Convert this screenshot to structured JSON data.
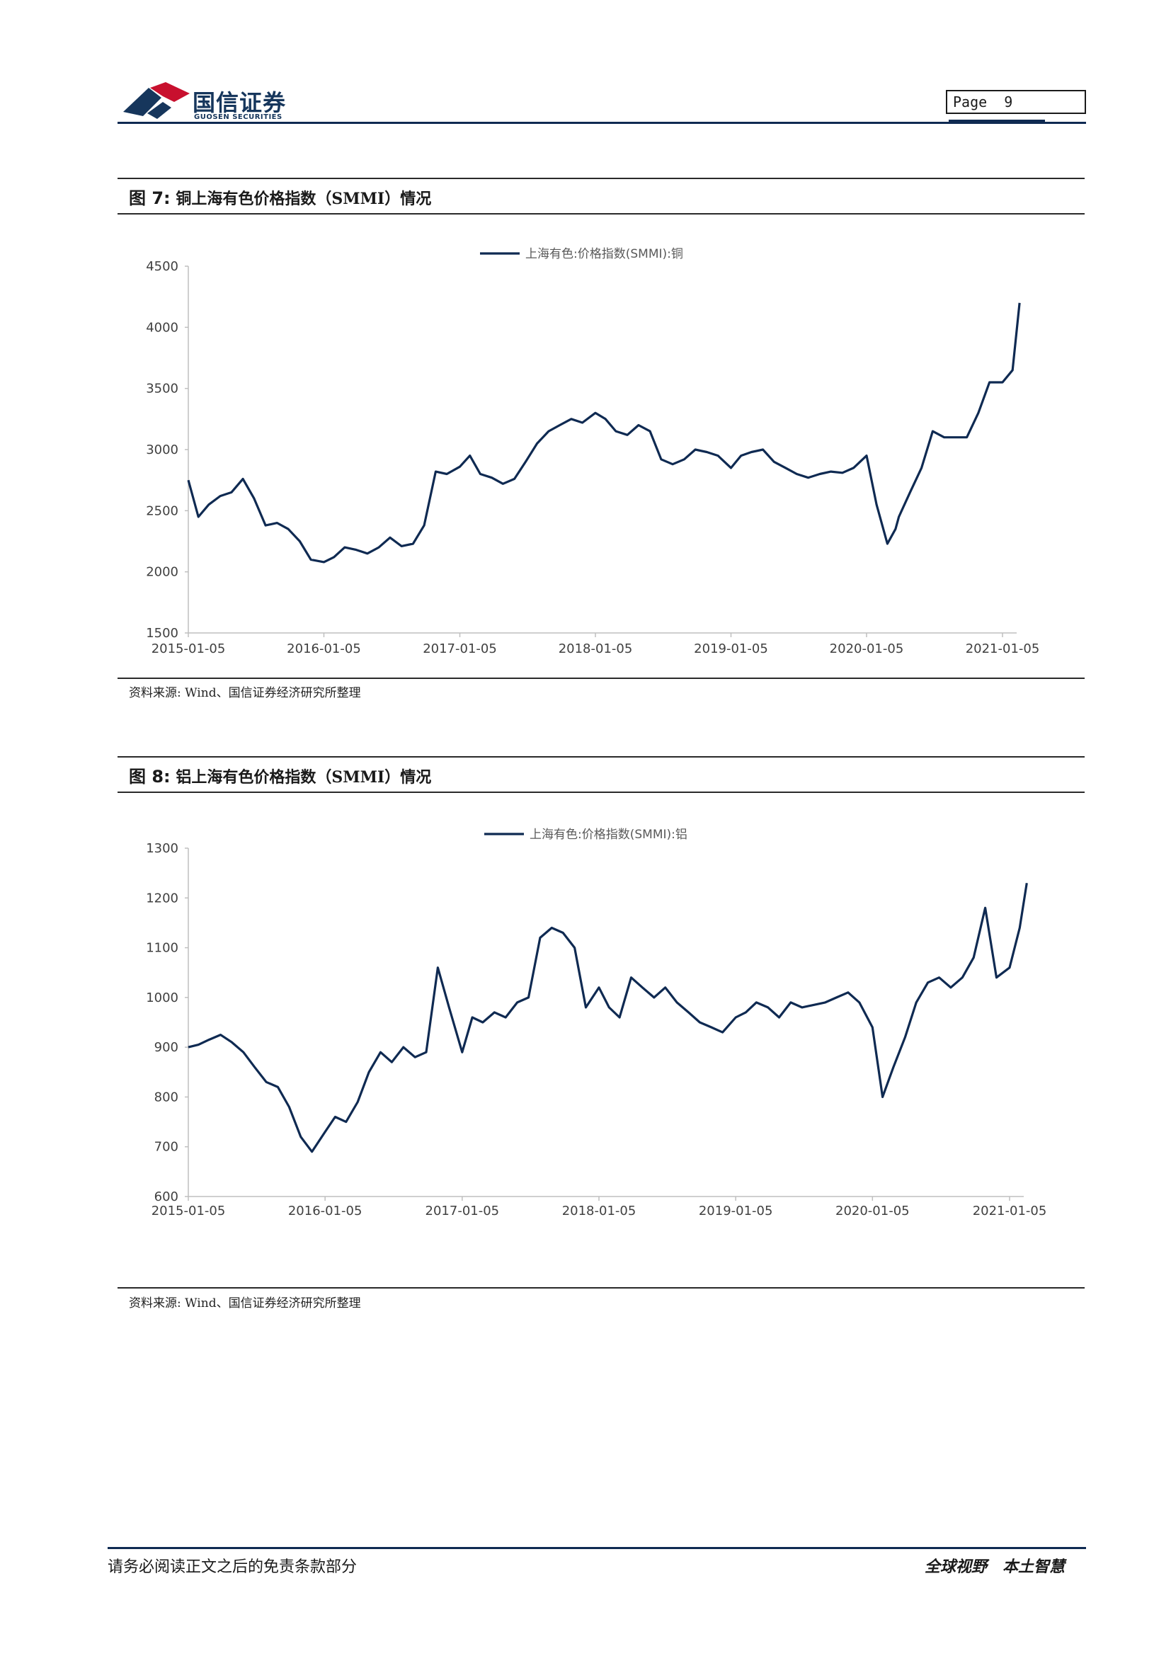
{
  "header": {
    "logo_cn": "国信证券",
    "logo_en": "GUOSEN SECURITIES",
    "page_label": "Page",
    "page_number": "9",
    "colors": {
      "brand_navy": "#16365c",
      "brand_red": "#c8102e"
    }
  },
  "figures": [
    {
      "label": "图 7:",
      "title": "铜上海有色价格指数（SMMI）情况",
      "source": "资料来源: Wind、国信证券经济研究所整理"
    },
    {
      "label": "图 8:",
      "title": "铝上海有色价格指数（SMMI）情况",
      "source": "资料来源: Wind、国信证券经济研究所整理"
    }
  ],
  "chart_data": [
    {
      "type": "line",
      "color": "#0f2a52",
      "series": [
        {
          "name": "上海有色:价格指数(SMMI):铜",
          "x": [
            "2015-01-05",
            "2015-02-01",
            "2015-03-01",
            "2015-04-01",
            "2015-05-01",
            "2015-06-01",
            "2015-07-01",
            "2015-08-01",
            "2015-09-01",
            "2015-10-01",
            "2015-11-01",
            "2015-12-01",
            "2016-01-05",
            "2016-02-01",
            "2016-03-01",
            "2016-04-01",
            "2016-05-01",
            "2016-06-01",
            "2016-07-01",
            "2016-08-01",
            "2016-09-01",
            "2016-10-01",
            "2016-11-01",
            "2016-12-01",
            "2017-01-05",
            "2017-02-01",
            "2017-03-01",
            "2017-04-01",
            "2017-05-01",
            "2017-06-01",
            "2017-07-01",
            "2017-08-01",
            "2017-09-01",
            "2017-10-01",
            "2017-11-01",
            "2017-12-01",
            "2018-01-05",
            "2018-02-01",
            "2018-03-01",
            "2018-04-01",
            "2018-05-01",
            "2018-06-01",
            "2018-07-01",
            "2018-08-01",
            "2018-09-01",
            "2018-10-01",
            "2018-11-01",
            "2018-12-01",
            "2019-01-05",
            "2019-02-01",
            "2019-03-01",
            "2019-04-01",
            "2019-05-01",
            "2019-06-01",
            "2019-07-01",
            "2019-08-01",
            "2019-09-01",
            "2019-10-01",
            "2019-11-01",
            "2019-12-01",
            "2020-01-05",
            "2020-02-01",
            "2020-03-01",
            "2020-03-23",
            "2020-04-01",
            "2020-05-01",
            "2020-06-01",
            "2020-07-01",
            "2020-08-01",
            "2020-09-01",
            "2020-10-01",
            "2020-11-01",
            "2020-12-01",
            "2021-01-05",
            "2021-02-01",
            "2021-02-20"
          ],
          "values": [
            2750,
            2450,
            2550,
            2620,
            2650,
            2760,
            2600,
            2380,
            2400,
            2350,
            2250,
            2100,
            2080,
            2120,
            2200,
            2180,
            2150,
            2200,
            2280,
            2210,
            2230,
            2380,
            2820,
            2800,
            2860,
            2950,
            2800,
            2770,
            2720,
            2760,
            2900,
            3050,
            3150,
            3200,
            3250,
            3220,
            3300,
            3250,
            3150,
            3120,
            3200,
            3150,
            2920,
            2880,
            2920,
            3000,
            2980,
            2950,
            2850,
            2950,
            2980,
            3000,
            2900,
            2850,
            2800,
            2770,
            2800,
            2820,
            2810,
            2850,
            2950,
            2550,
            2230,
            2350,
            2450,
            2650,
            2850,
            3150,
            3100,
            3100,
            3100,
            3300,
            3550,
            3550,
            3650,
            4200
          ]
        }
      ],
      "x_ticks": [
        "2015-01-05",
        "2016-01-05",
        "2017-01-05",
        "2018-01-05",
        "2019-01-05",
        "2020-01-05",
        "2021-01-05"
      ],
      "ylim": [
        1500,
        4500
      ],
      "y_ticks": [
        1500,
        2000,
        2500,
        3000,
        3500,
        4000,
        4500
      ],
      "legend": "top-center",
      "grid": false
    },
    {
      "type": "line",
      "color": "#0f2a52",
      "series": [
        {
          "name": "上海有色:价格指数(SMMI):铝",
          "x": [
            "2015-01-05",
            "2015-02-01",
            "2015-03-01",
            "2015-04-01",
            "2015-05-01",
            "2015-06-01",
            "2015-07-01",
            "2015-08-01",
            "2015-09-01",
            "2015-10-01",
            "2015-11-01",
            "2015-12-01",
            "2016-01-05",
            "2016-02-01",
            "2016-03-01",
            "2016-04-01",
            "2016-05-01",
            "2016-06-01",
            "2016-07-01",
            "2016-08-01",
            "2016-09-01",
            "2016-10-01",
            "2016-11-01",
            "2016-12-01",
            "2017-01-05",
            "2017-02-01",
            "2017-03-01",
            "2017-04-01",
            "2017-05-01",
            "2017-06-01",
            "2017-07-01",
            "2017-08-01",
            "2017-09-01",
            "2017-10-01",
            "2017-11-01",
            "2017-12-01",
            "2018-01-05",
            "2018-02-01",
            "2018-03-01",
            "2018-04-01",
            "2018-05-01",
            "2018-06-01",
            "2018-07-01",
            "2018-08-01",
            "2018-09-01",
            "2018-10-01",
            "2018-11-01",
            "2018-12-01",
            "2019-01-05",
            "2019-02-01",
            "2019-03-01",
            "2019-04-01",
            "2019-05-01",
            "2019-06-01",
            "2019-07-01",
            "2019-08-01",
            "2019-09-01",
            "2019-10-01",
            "2019-11-01",
            "2019-12-01",
            "2020-01-05",
            "2020-02-01",
            "2020-03-01",
            "2020-04-01",
            "2020-05-01",
            "2020-06-01",
            "2020-07-01",
            "2020-08-01",
            "2020-09-01",
            "2020-10-01",
            "2020-11-01",
            "2020-12-01",
            "2021-01-05",
            "2021-02-01",
            "2021-02-20"
          ],
          "values": [
            900,
            905,
            915,
            925,
            910,
            890,
            860,
            830,
            820,
            780,
            720,
            690,
            730,
            760,
            750,
            790,
            850,
            890,
            870,
            900,
            880,
            890,
            1060,
            980,
            890,
            960,
            950,
            970,
            960,
            990,
            1000,
            1120,
            1140,
            1130,
            1100,
            980,
            1020,
            980,
            960,
            1040,
            1020,
            1000,
            1020,
            990,
            970,
            950,
            940,
            930,
            960,
            970,
            990,
            980,
            960,
            990,
            980,
            985,
            990,
            1000,
            1010,
            990,
            940,
            800,
            860,
            920,
            990,
            1030,
            1040,
            1020,
            1040,
            1080,
            1180,
            1040,
            1060,
            1140,
            1230
          ]
        }
      ],
      "x_ticks": [
        "2015-01-05",
        "2016-01-05",
        "2017-01-05",
        "2018-01-05",
        "2019-01-05",
        "2020-01-05",
        "2021-01-05"
      ],
      "ylim": [
        600,
        1300
      ],
      "y_ticks": [
        600,
        700,
        800,
        900,
        1000,
        1100,
        1200,
        1300
      ],
      "legend": "top-center",
      "grid": false
    }
  ],
  "footer": {
    "disclaimer": "请务必阅读正文之后的免责条款部分",
    "slogan": "全球视野　本土智慧"
  }
}
